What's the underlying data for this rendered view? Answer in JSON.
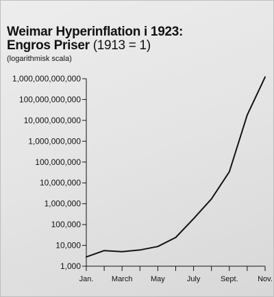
{
  "title": {
    "line1": "Weimar Hyperinflation i 1923:",
    "line2_bold": "Engros Priser",
    "line2_rest": " (1913 = 1)"
  },
  "note": "(logarithmisk scala)",
  "chart_data": {
    "type": "line",
    "title": "Weimar Hyperinflation i 1923: Engros Priser (1913 = 1)",
    "subtitle": "(logarithmisk scala)",
    "xlabel": "",
    "ylabel": "",
    "yscale": "log",
    "ylim": [
      1000,
      1000000000000
    ],
    "xlim": [
      1,
      11
    ],
    "grid": false,
    "x_ticks": [
      {
        "x": 1,
        "label": "Jan."
      },
      {
        "x": 3,
        "label": "March"
      },
      {
        "x": 5,
        "label": "May"
      },
      {
        "x": 7,
        "label": "July"
      },
      {
        "x": 9,
        "label": "Sept."
      },
      {
        "x": 11,
        "label": "Nov."
      }
    ],
    "y_ticks": [
      {
        "value": 1000,
        "label": "1,000"
      },
      {
        "value": 10000,
        "label": "10,000"
      },
      {
        "value": 100000,
        "label": "100,000"
      },
      {
        "value": 1000000,
        "label": "1,000,000"
      },
      {
        "value": 10000000,
        "label": "10,000,000"
      },
      {
        "value": 100000000,
        "label": "100,000,000"
      },
      {
        "value": 1000000000,
        "label": "1,000,000,000"
      },
      {
        "value": 10000000000,
        "label": "10,000,000,000"
      },
      {
        "value": 100000000000,
        "label": "100,000,000,000"
      },
      {
        "value": 1000000000000,
        "label": "1,000,000,000,000"
      }
    ],
    "series": [
      {
        "x": [
          1,
          2,
          3,
          4,
          5,
          6,
          7,
          8,
          9,
          10,
          11
        ],
        "values": [
          2800,
          5600,
          5000,
          6000,
          8800,
          24000,
          190000,
          1700000,
          34000000,
          18000000000,
          1200000000000
        ]
      }
    ],
    "line_color": "#111111"
  }
}
